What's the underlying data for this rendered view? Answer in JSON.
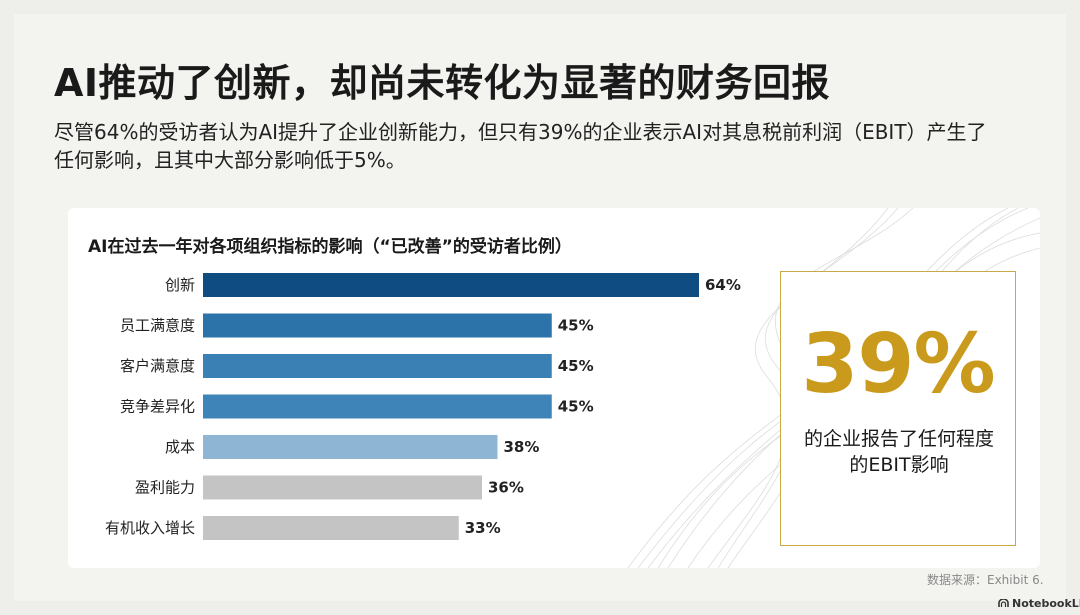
{
  "slide": {
    "title": "AI推动了创新，却尚未转化为显著的财务回报",
    "subtitle": "尽管64%的受访者认为AI提升了企业创新能力，但只有39%的企业表示AI对其息税前利润（EBIT）产生了任何影响，且其中大部分影响低于5%。",
    "source": "数据来源：Exhibit 6.",
    "brand": "NotebookLM"
  },
  "callout": {
    "value": "39%",
    "text": "的企业报告了任何程度的EBIT影响",
    "color": "#c99a1b"
  },
  "chart_data": {
    "type": "bar",
    "orientation": "horizontal",
    "title": "AI在过去一年对各项组织指标的影响（“已改善”的受访者比例）",
    "categories": [
      "创新",
      "员工满意度",
      "客户满意度",
      "竞争差异化",
      "成本",
      "盈利能力",
      "有机收入增长"
    ],
    "values": [
      64,
      45,
      45,
      45,
      38,
      36,
      33
    ],
    "value_labels": [
      "64%",
      "45%",
      "45%",
      "45%",
      "38%",
      "36%",
      "33%"
    ],
    "colors": [
      "#0f4c81",
      "#2b73a9",
      "#3a80b5",
      "#3e84b8",
      "#8fb5d4",
      "#c4c4c4",
      "#c4c4c4"
    ],
    "xlim": [
      0,
      100
    ],
    "grid": false,
    "legend": "none"
  }
}
